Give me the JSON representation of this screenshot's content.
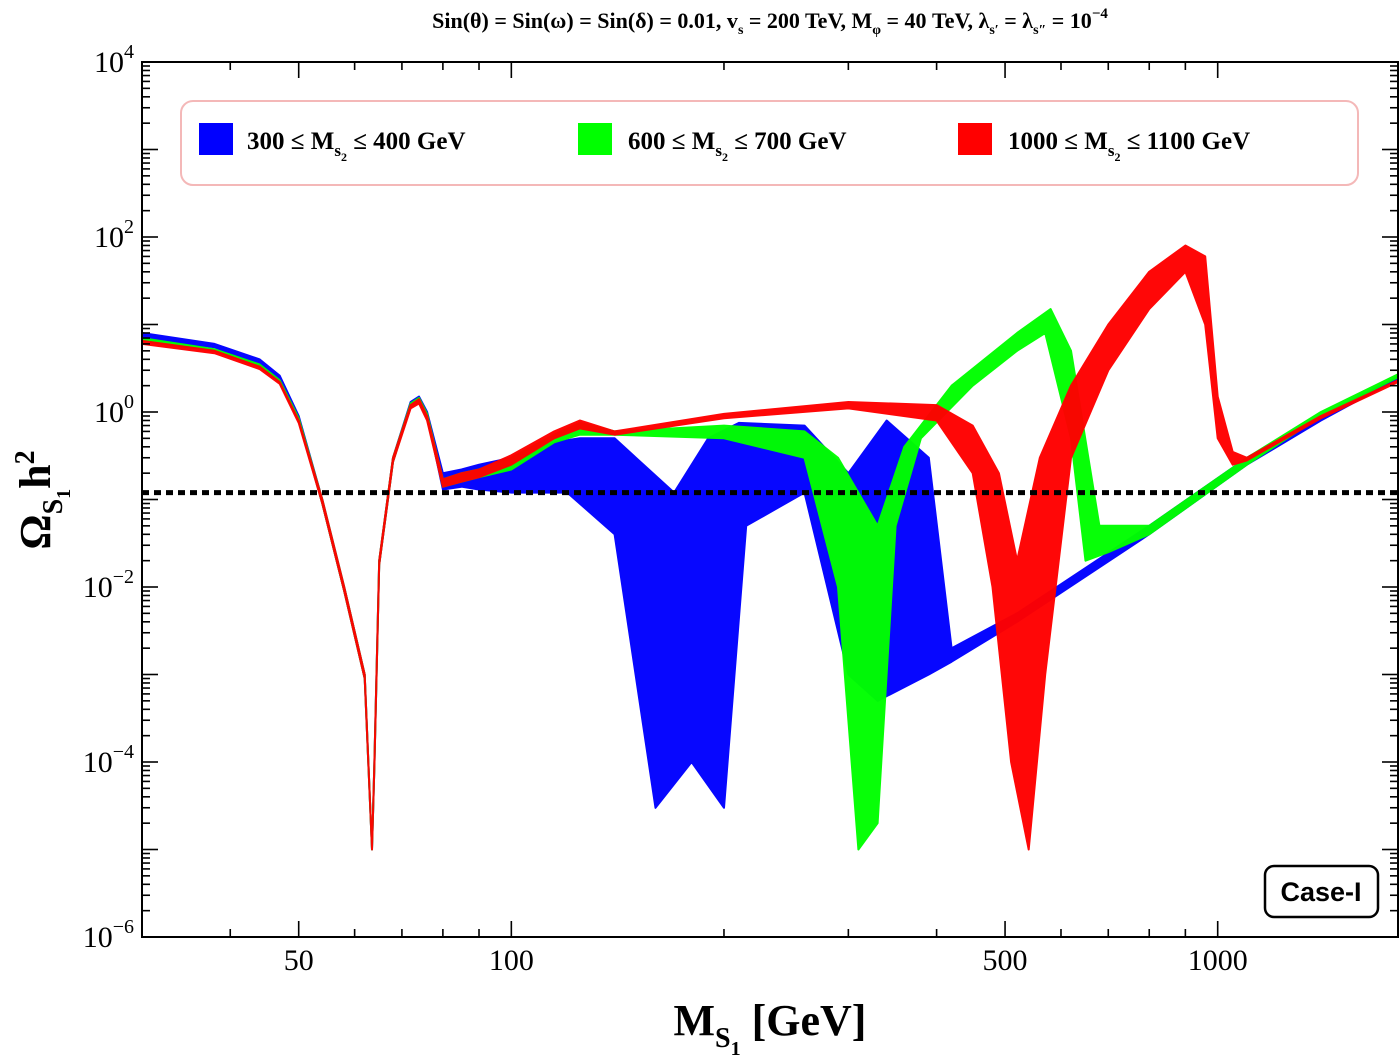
{
  "chart_data": {
    "type": "scatter",
    "title": "Sin(θ) = Sin(ω) = Sin(δ) = 0.01, v_s = 200 TeV, M_φ = 40 TeV, λ_s′ = λ_s″ = 10^-4",
    "title_parts": {
      "p1": "Sin(θ) = Sin(ω) = Sin(δ) = 0.01,  v",
      "p1_sub": "s",
      "p2": " = 200 TeV,  M",
      "p2_sub": "φ",
      "p3": " = 40 TeV,  λ",
      "p3_sub": "s′",
      "p4": " = λ",
      "p4_sub": "s″",
      "p5": " = 10",
      "p5_sup": "−4"
    },
    "xlabel": "M_S1 [GeV]",
    "xlabel_parts": {
      "main": "M",
      "sub": "S",
      "subsub": "1",
      "rest": " [GeV]"
    },
    "ylabel": "Ω_S1 h²",
    "ylabel_parts": {
      "main": "Ω",
      "sub": "S",
      "subsub": "1",
      "rest": "h",
      "sup": "2"
    },
    "xscale": "log",
    "yscale": "log",
    "xlim": [
      30,
      1800
    ],
    "ylim": [
      1e-06,
      10000.0
    ],
    "x_major_ticks": [
      {
        "value": 50,
        "label": "50"
      },
      {
        "value": 100,
        "label": "100"
      },
      {
        "value": 500,
        "label": "500"
      },
      {
        "value": 1000,
        "label": "1000"
      }
    ],
    "y_major_ticks": [
      {
        "value": 1e-06,
        "base": "10",
        "exp": "−6"
      },
      {
        "value": 0.0001,
        "base": "10",
        "exp": "−4"
      },
      {
        "value": 0.01,
        "base": "10",
        "exp": "−2"
      },
      {
        "value": 1,
        "base": "10",
        "exp": "0"
      },
      {
        "value": 100,
        "base": "10",
        "exp": "2"
      },
      {
        "value": 10000,
        "base": "10",
        "exp": "4"
      }
    ],
    "reference_line": {
      "y": 0.12,
      "style": "dotted",
      "color": "#000000"
    },
    "annotation": "Case-I",
    "legend_position": "top",
    "series": [
      {
        "name": "300 ≤ M_s2 ≤ 400 GeV",
        "legend_main": "300 ≤ M",
        "legend_sub": "s",
        "legend_subsub": "2",
        "legend_rest": " ≤ 400 GeV",
        "color": "#0000ff",
        "upper": [
          [
            30,
            8
          ],
          [
            38,
            6
          ],
          [
            44,
            4
          ],
          [
            47,
            2.6
          ],
          [
            50,
            0.9
          ],
          [
            54,
            0.1
          ],
          [
            58,
            0.01
          ],
          [
            62,
            0.001
          ],
          [
            63.5,
            1e-05
          ],
          [
            64,
            0.0001
          ],
          [
            65,
            0.02
          ],
          [
            68,
            0.3
          ],
          [
            72,
            1.3
          ],
          [
            74,
            1.5
          ],
          [
            76,
            1
          ],
          [
            80,
            0.2
          ],
          [
            85,
            0.22
          ],
          [
            90,
            0.25
          ],
          [
            100,
            0.3
          ],
          [
            115,
            0.45
          ],
          [
            125,
            0.5
          ],
          [
            140,
            0.5
          ],
          [
            170,
            0.12
          ],
          [
            190,
            0.5
          ],
          [
            210,
            0.75
          ],
          [
            260,
            0.7
          ],
          [
            300,
            0.2
          ],
          [
            340,
            0.8
          ],
          [
            390,
            0.3
          ],
          [
            420,
            0.002
          ],
          [
            520,
            0.005
          ],
          [
            800,
            0.05
          ],
          [
            1100,
            0.3
          ],
          [
            1400,
            0.9
          ],
          [
            1800,
            2.5
          ]
        ],
        "lower": [
          [
            30,
            7
          ],
          [
            38,
            5.5
          ],
          [
            44,
            3.5
          ],
          [
            47,
            2.3
          ],
          [
            50,
            0.8
          ],
          [
            54,
            0.09
          ],
          [
            58,
            0.009
          ],
          [
            62,
            0.0009
          ],
          [
            63.5,
            1e-05
          ],
          [
            64,
            9e-05
          ],
          [
            65,
            0.018
          ],
          [
            68,
            0.27
          ],
          [
            72,
            1.2
          ],
          [
            74,
            1.35
          ],
          [
            76,
            0.9
          ],
          [
            80,
            0.13
          ],
          [
            85,
            0.14
          ],
          [
            90,
            0.13
          ],
          [
            100,
            0.12
          ],
          [
            120,
            0.12
          ],
          [
            140,
            0.04
          ],
          [
            160,
            3e-05
          ],
          [
            180,
            0.0001
          ],
          [
            200,
            3e-05
          ],
          [
            215,
            0.05
          ],
          [
            260,
            0.12
          ],
          [
            300,
            0.001
          ],
          [
            330,
            0.0005
          ],
          [
            390,
            0.001
          ],
          [
            420,
            0.0014
          ],
          [
            520,
            0.004
          ],
          [
            800,
            0.04
          ],
          [
            1100,
            0.25
          ],
          [
            1400,
            0.8
          ],
          [
            1800,
            2.4
          ]
        ]
      },
      {
        "name": "600 ≤ M_s2 ≤ 700 GeV",
        "legend_main": "600 ≤ M",
        "legend_sub": "s",
        "legend_subsub": "2",
        "legend_rest": " ≤ 700 GeV",
        "color": "#00ff00",
        "upper": [
          [
            30,
            7
          ],
          [
            38,
            5.2
          ],
          [
            44,
            3.5
          ],
          [
            47,
            2.3
          ],
          [
            50,
            0.85
          ],
          [
            54,
            0.1
          ],
          [
            58,
            0.01
          ],
          [
            62,
            0.001
          ],
          [
            63.5,
            1e-05
          ],
          [
            64,
            0.0001
          ],
          [
            65,
            0.02
          ],
          [
            68,
            0.3
          ],
          [
            72,
            1.25
          ],
          [
            74,
            1.45
          ],
          [
            76,
            0.95
          ],
          [
            80,
            0.17
          ],
          [
            85,
            0.2
          ],
          [
            90,
            0.22
          ],
          [
            100,
            0.3
          ],
          [
            115,
            0.55
          ],
          [
            125,
            0.75
          ],
          [
            140,
            0.6
          ],
          [
            200,
            0.7
          ],
          [
            260,
            0.6
          ],
          [
            290,
            0.3
          ],
          [
            330,
            0.05
          ],
          [
            360,
            0.4
          ],
          [
            420,
            2
          ],
          [
            520,
            8
          ],
          [
            580,
            15
          ],
          [
            620,
            5
          ],
          [
            680,
            0.05
          ],
          [
            800,
            0.05
          ],
          [
            1100,
            0.3
          ],
          [
            1400,
            1
          ],
          [
            1800,
            2.7
          ]
        ],
        "lower": [
          [
            30,
            6.5
          ],
          [
            38,
            5
          ],
          [
            44,
            3.3
          ],
          [
            47,
            2.2
          ],
          [
            50,
            0.8
          ],
          [
            54,
            0.09
          ],
          [
            58,
            0.009
          ],
          [
            62,
            0.0009
          ],
          [
            63.5,
            1e-05
          ],
          [
            64,
            9e-05
          ],
          [
            65,
            0.018
          ],
          [
            68,
            0.27
          ],
          [
            72,
            1.15
          ],
          [
            74,
            1.3
          ],
          [
            76,
            0.85
          ],
          [
            80,
            0.14
          ],
          [
            85,
            0.16
          ],
          [
            90,
            0.18
          ],
          [
            100,
            0.22
          ],
          [
            115,
            0.45
          ],
          [
            125,
            0.55
          ],
          [
            140,
            0.55
          ],
          [
            200,
            0.5
          ],
          [
            260,
            0.3
          ],
          [
            290,
            0.01
          ],
          [
            310,
            1e-05
          ],
          [
            330,
            2e-05
          ],
          [
            350,
            0.05
          ],
          [
            380,
            0.5
          ],
          [
            450,
            2
          ],
          [
            520,
            5
          ],
          [
            570,
            8
          ],
          [
            620,
            0.5
          ],
          [
            650,
            0.02
          ],
          [
            700,
            0.025
          ],
          [
            800,
            0.04
          ],
          [
            1100,
            0.25
          ],
          [
            1400,
            0.9
          ],
          [
            1800,
            2.5
          ]
        ]
      },
      {
        "name": "1000 ≤ M_s2 ≤ 1100 GeV",
        "legend_main": "1000 ≤ M",
        "legend_sub": "s",
        "legend_subsub": "2",
        "legend_rest": " ≤ 1100 GeV",
        "color": "#ff0000",
        "upper": [
          [
            30,
            6.5
          ],
          [
            38,
            5
          ],
          [
            44,
            3.3
          ],
          [
            47,
            2.2
          ],
          [
            50,
            0.8
          ],
          [
            54,
            0.1
          ],
          [
            58,
            0.01
          ],
          [
            62,
            0.001
          ],
          [
            63.5,
            1e-05
          ],
          [
            64,
            0.0001
          ],
          [
            65,
            0.02
          ],
          [
            68,
            0.3
          ],
          [
            72,
            1.2
          ],
          [
            74,
            1.4
          ],
          [
            76,
            0.9
          ],
          [
            80,
            0.17
          ],
          [
            85,
            0.2
          ],
          [
            90,
            0.22
          ],
          [
            100,
            0.32
          ],
          [
            115,
            0.6
          ],
          [
            125,
            0.8
          ],
          [
            140,
            0.6
          ],
          [
            200,
            0.95
          ],
          [
            300,
            1.3
          ],
          [
            400,
            1.2
          ],
          [
            450,
            0.7
          ],
          [
            490,
            0.2
          ],
          [
            520,
            0.02
          ],
          [
            560,
            0.3
          ],
          [
            620,
            2
          ],
          [
            700,
            10
          ],
          [
            800,
            40
          ],
          [
            900,
            80
          ],
          [
            960,
            60
          ],
          [
            1000,
            1.5
          ],
          [
            1050,
            0.35
          ],
          [
            1100,
            0.3
          ],
          [
            1400,
            0.9
          ],
          [
            1800,
            2.3
          ]
        ],
        "lower": [
          [
            30,
            6
          ],
          [
            38,
            4.7
          ],
          [
            44,
            3.1
          ],
          [
            47,
            2.1
          ],
          [
            50,
            0.75
          ],
          [
            54,
            0.09
          ],
          [
            58,
            0.009
          ],
          [
            62,
            0.0009
          ],
          [
            63.5,
            1e-05
          ],
          [
            64,
            9e-05
          ],
          [
            65,
            0.018
          ],
          [
            68,
            0.27
          ],
          [
            72,
            1.1
          ],
          [
            74,
            1.25
          ],
          [
            76,
            0.8
          ],
          [
            80,
            0.14
          ],
          [
            85,
            0.16
          ],
          [
            90,
            0.18
          ],
          [
            100,
            0.25
          ],
          [
            115,
            0.5
          ],
          [
            125,
            0.65
          ],
          [
            140,
            0.55
          ],
          [
            200,
            0.85
          ],
          [
            300,
            1.1
          ],
          [
            400,
            0.8
          ],
          [
            450,
            0.2
          ],
          [
            480,
            0.01
          ],
          [
            510,
            0.0001
          ],
          [
            540,
            1e-05
          ],
          [
            570,
            0.001
          ],
          [
            620,
            0.3
          ],
          [
            700,
            3
          ],
          [
            800,
            15
          ],
          [
            900,
            40
          ],
          [
            960,
            10
          ],
          [
            1000,
            0.5
          ],
          [
            1050,
            0.25
          ],
          [
            1100,
            0.28
          ],
          [
            1400,
            0.85
          ],
          [
            1800,
            2.2
          ]
        ]
      }
    ]
  }
}
